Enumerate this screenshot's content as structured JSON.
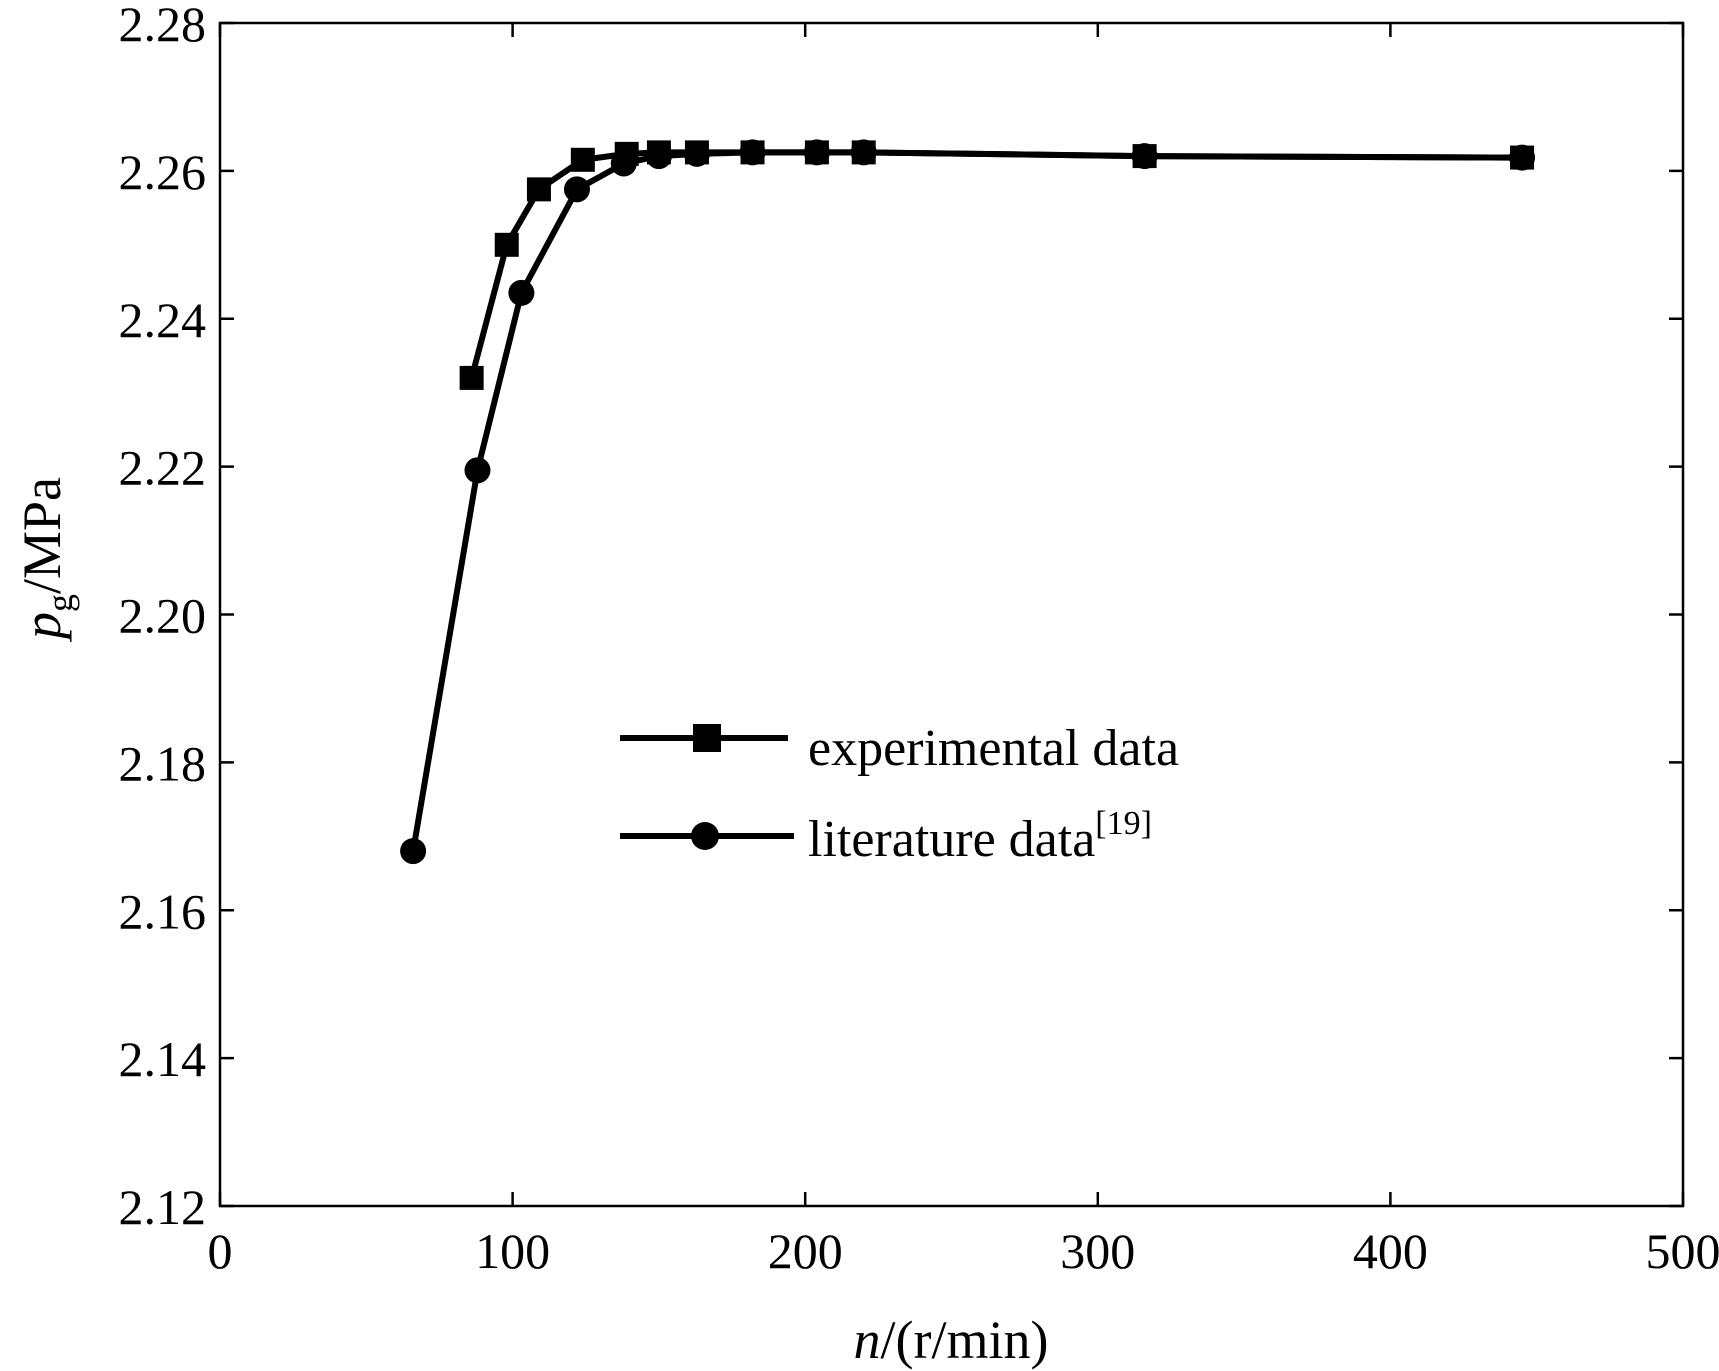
{
  "chart_data": {
    "type": "line",
    "title": "",
    "xlabel": {
      "var": "n",
      "text": "/(r/min)"
    },
    "ylabel": {
      "var": "p",
      "sub": "g",
      "text": "/MPa"
    },
    "xlim": [
      0,
      500
    ],
    "ylim": [
      2.12,
      2.28
    ],
    "xticks": [
      0,
      100,
      200,
      300,
      400,
      500
    ],
    "yticks": [
      2.12,
      2.14,
      2.16,
      2.18,
      2.2,
      2.22,
      2.24,
      2.26,
      2.28
    ],
    "xtick_labels": [
      "0",
      "100",
      "200",
      "300",
      "400",
      "500"
    ],
    "ytick_labels": [
      "2.12",
      "2.14",
      "2.16",
      "2.18",
      "2.20",
      "2.22",
      "2.24",
      "2.26",
      "2.28"
    ],
    "grid": false,
    "legend_position": "center",
    "series": [
      {
        "name": "experimental data",
        "marker": "square",
        "color": "#000000",
        "x": [
          86,
          98,
          109,
          124,
          139,
          150,
          163,
          182,
          204,
          220,
          316,
          445
        ],
        "y": [
          2.232,
          2.25,
          2.2575,
          2.2615,
          2.2623,
          2.2625,
          2.2625,
          2.2625,
          2.2625,
          2.2625,
          2.262,
          2.2618
        ]
      },
      {
        "name": "literature data",
        "name_sup": "[19]",
        "marker": "circle",
        "color": "#000000",
        "x": [
          66,
          88,
          103,
          122,
          138,
          150,
          163,
          182,
          204,
          220,
          316,
          445
        ],
        "y": [
          2.168,
          2.2195,
          2.2435,
          2.2575,
          2.261,
          2.262,
          2.2623,
          2.2625,
          2.2625,
          2.2625,
          2.262,
          2.2618
        ]
      }
    ]
  }
}
